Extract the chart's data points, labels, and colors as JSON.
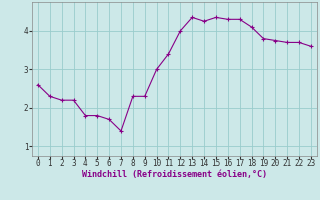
{
  "x": [
    0,
    1,
    2,
    3,
    4,
    5,
    6,
    7,
    8,
    9,
    10,
    11,
    12,
    13,
    14,
    15,
    16,
    17,
    18,
    19,
    20,
    21,
    22,
    23
  ],
  "y": [
    2.6,
    2.3,
    2.2,
    2.2,
    1.8,
    1.8,
    1.7,
    1.4,
    2.3,
    2.3,
    3.0,
    3.4,
    4.0,
    4.35,
    4.25,
    4.35,
    4.3,
    4.3,
    4.1,
    3.8,
    3.75,
    3.7,
    3.7,
    3.6
  ],
  "xlabel": "Windchill (Refroidissement éolien,°C)",
  "bg_color": "#cce8e8",
  "line_color": "#880088",
  "grid_color": "#99cccc",
  "yticks": [
    1,
    2,
    3,
    4
  ],
  "xticks": [
    0,
    1,
    2,
    3,
    4,
    5,
    6,
    7,
    8,
    9,
    10,
    11,
    12,
    13,
    14,
    15,
    16,
    17,
    18,
    19,
    20,
    21,
    22,
    23
  ],
  "xlim": [
    -0.5,
    23.5
  ],
  "ylim": [
    0.75,
    4.75
  ],
  "xlabel_fontsize": 6.0,
  "tick_fontsize": 5.5
}
